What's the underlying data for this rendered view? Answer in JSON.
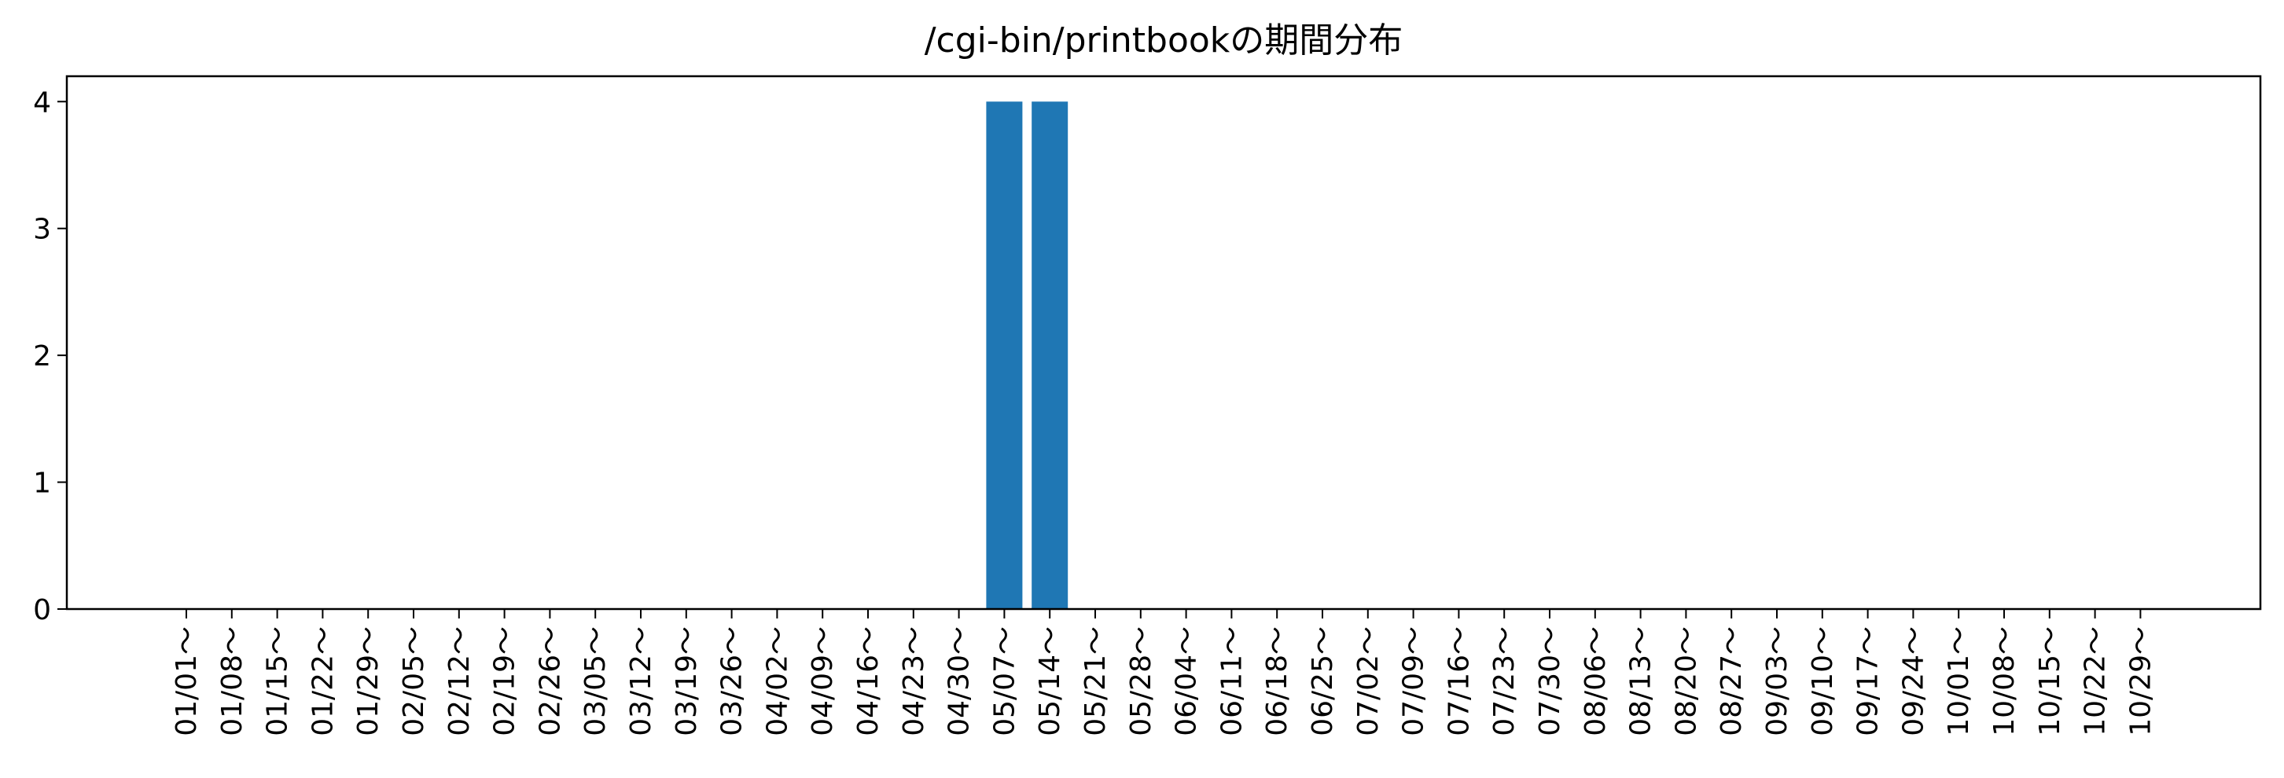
{
  "chart_data": {
    "type": "bar",
    "title": "/cgi-bin/printbookの期間分布",
    "xlabel": "",
    "ylabel": "",
    "ylim": [
      0,
      4.2
    ],
    "yticks": [
      0,
      1,
      2,
      3,
      4
    ],
    "grid": false,
    "bar_color": "#1f77b4",
    "categories": [
      "01/01～",
      "01/08～",
      "01/15～",
      "01/22～",
      "01/29～",
      "02/05～",
      "02/12～",
      "02/19～",
      "02/26～",
      "03/05～",
      "03/12～",
      "03/19～",
      "03/26～",
      "04/02～",
      "04/09～",
      "04/16～",
      "04/23～",
      "04/30～",
      "05/07～",
      "05/14～",
      "05/21～",
      "05/28～",
      "06/04～",
      "06/11～",
      "06/18～",
      "06/25～",
      "07/02～",
      "07/09～",
      "07/16～",
      "07/23～",
      "07/30～",
      "08/06～",
      "08/13～",
      "08/20～",
      "08/27～",
      "09/03～",
      "09/10～",
      "09/17～",
      "09/24～",
      "10/01～",
      "10/08～",
      "10/15～",
      "10/22～",
      "10/29～"
    ],
    "values": [
      0,
      0,
      0,
      0,
      0,
      0,
      0,
      0,
      0,
      0,
      0,
      0,
      0,
      0,
      0,
      0,
      0,
      0,
      4,
      4,
      0,
      0,
      0,
      0,
      0,
      0,
      0,
      0,
      0,
      0,
      0,
      0,
      0,
      0,
      0,
      0,
      0,
      0,
      0,
      0,
      0,
      0,
      0,
      0
    ]
  }
}
